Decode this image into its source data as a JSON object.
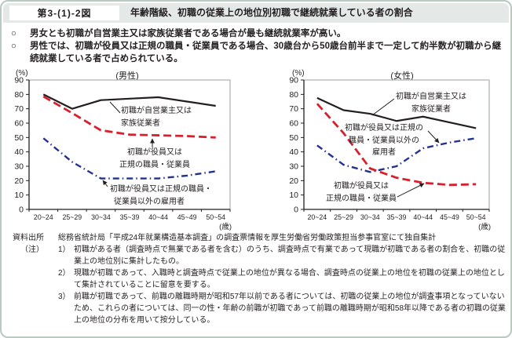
{
  "header": {
    "figure_number": "第3-(1)-2図",
    "title": "年齢階級、初職の従業上の地位別初職で継続就業している者の割合"
  },
  "bullets": [
    {
      "marker": "○",
      "text": "男女とも初職が自営業主又は家族従業者である場合が最も継続就業率が高い。"
    },
    {
      "marker": "○",
      "text": "男性では、初職が役員又は正規の職員・従業員である場合、30歳台から50歳台前半まで一定して約半数が初職から継続就業している者で占められている。"
    }
  ],
  "colors": {
    "self_employed_line": "#231f20",
    "regular_line": "#d71f2e",
    "non_regular_line": "#23318f",
    "header_band": "#e4e9e8",
    "frame_border": "#b9cac1"
  },
  "chart_data": [
    {
      "type": "line",
      "title": "(男性)",
      "unit_y": "(%)",
      "unit_x": "(歳)",
      "categories": [
        "20~24",
        "25~29",
        "30~34",
        "35~39",
        "40~44",
        "45~49",
        "50~54"
      ],
      "ylim": [
        0,
        90
      ],
      "ytick_step": 10,
      "grid": false,
      "legend_position": "inline-annotations",
      "series": [
        {
          "name": "初職が自営業主又は家族従業者",
          "style": "solid",
          "color": "#231f20",
          "values": [
            80,
            70,
            76,
            77,
            78,
            75,
            72
          ]
        },
        {
          "name": "初職が役員又は正規の職員・従業員",
          "style": "dashed",
          "color": "#d71f2e",
          "values": [
            78.5,
            67,
            55,
            52,
            51.5,
            51,
            50
          ]
        },
        {
          "name": "初職が役員又は正規の職員・従業員以外の雇用者",
          "style": "dashdot",
          "color": "#23318f",
          "values": [
            49.5,
            33,
            21.5,
            21.5,
            21.5,
            23.5,
            26.5
          ]
        }
      ],
      "annotations": {
        "self_employed": [
          "初職が自営業主又は",
          "家族従業者"
        ],
        "regular": [
          "初職が役員又は",
          "正規の職員・従業員"
        ],
        "non_regular": [
          "初職が役員又は正規の職員・",
          "従業員以外の雇用者"
        ]
      }
    },
    {
      "type": "line",
      "title": "(女性)",
      "unit_y": "(%)",
      "unit_x": "(歳)",
      "categories": [
        "20~24",
        "25~29",
        "30~34",
        "35~39",
        "40~44",
        "45~49",
        "50~54"
      ],
      "ylim": [
        0,
        90
      ],
      "ytick_step": 10,
      "grid": false,
      "legend_position": "inline-annotations",
      "series": [
        {
          "name": "初職が自営業主又は家族従業者",
          "style": "solid",
          "color": "#231f20",
          "values": [
            77.5,
            69,
            66.5,
            61.5,
            64.5,
            60.5,
            56.5
          ]
        },
        {
          "name": "初職が役員又は正規の職員・従業員",
          "style": "dashed",
          "color": "#d71f2e",
          "values": [
            73.5,
            53,
            28.5,
            22,
            18.5,
            17,
            17.5
          ]
        },
        {
          "name": "初職が役員又は正規の職員・従業員以外の雇用者",
          "style": "dashdot",
          "color": "#23318f",
          "values": [
            44.5,
            31,
            26,
            30,
            42.5,
            46.5,
            49.5
          ]
        }
      ],
      "annotations": {
        "self_employed": [
          "初職が自営業主又は",
          "家族従業者"
        ],
        "non_regular": [
          "初職が役員又は正規の",
          "職員・従業員以外の",
          "雇用者"
        ],
        "regular": [
          "初職が役員又は",
          "正規の職員・従業員"
        ]
      }
    }
  ],
  "notes": {
    "source_label": "資料出所",
    "source_text": "総務省統計局「平成24年就業構造基本調査」の調査票情報を厚生労働省労働政策担当参事官室にて独自集計",
    "note_label": "（注）",
    "items": [
      {
        "num": "1）",
        "text": "初職がある者（調査時点で無業である者を含む）のうち、調査時点で有業であって現職が初職である者の割合を、初職の従業上の地位別に集計したもの。"
      },
      {
        "num": "2）",
        "text": "現職が初職であって、入職時と調査時点で従業上の地位が異なる場合、調査時点の従業上の地位を初職の従業上の地位として集計されていることに留意を要する。"
      },
      {
        "num": "3）",
        "text": "前職が初職であって、前職の離職時期が昭和57年以前である者については、初職の従業上の地位が調査事項となっていないため、これらの者については、同一の性・年齢の前職が初職であって前職の離職時期が昭和58年以降である者の初職の従業上の地位の分布を用いて按分している。"
      }
    ]
  }
}
